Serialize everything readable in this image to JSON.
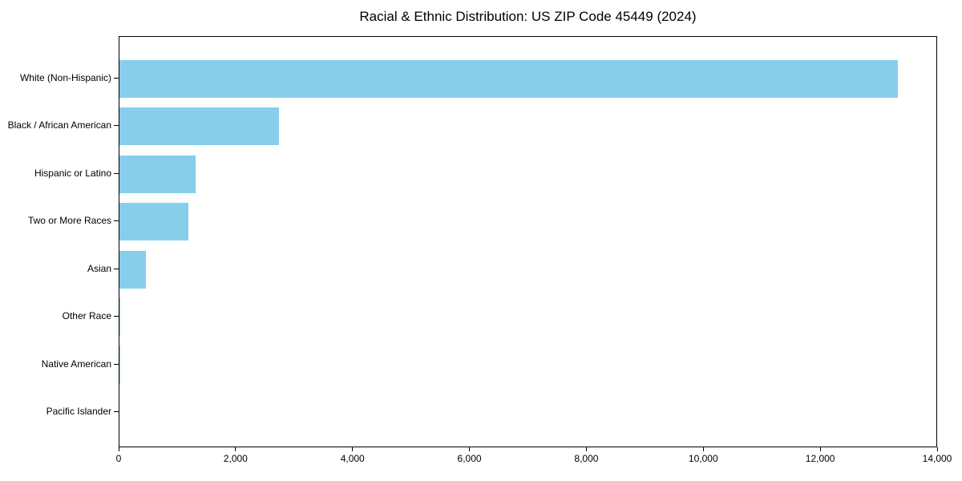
{
  "title": "Racial & Ethnic Distribution: US ZIP Code 45449 (2024)",
  "chart_data": {
    "type": "bar",
    "orientation": "horizontal",
    "title": "Racial & Ethnic Distribution: US ZIP Code 45449 (2024)",
    "categories": [
      "White (Non-Hispanic)",
      "Black / African American",
      "Hispanic or Latino",
      "Two or More Races",
      "Asian",
      "Other Race",
      "Native American",
      "Pacific Islander"
    ],
    "values": [
      13340,
      2730,
      1300,
      1180,
      450,
      15,
      5,
      0
    ],
    "xlabel": "",
    "ylabel": "",
    "xlim": [
      0,
      14000
    ],
    "x_tick_values": [
      0,
      2000,
      4000,
      6000,
      8000,
      10000,
      12000,
      14000
    ],
    "x_tick_labels": [
      "0",
      "2,000",
      "4,000",
      "6,000",
      "8,000",
      "10,000",
      "12,000",
      "14,000"
    ],
    "bar_color": "#87CEEB",
    "axis_color": "#000000",
    "text_color": "#000000",
    "grid": "off",
    "legend": "none"
  }
}
